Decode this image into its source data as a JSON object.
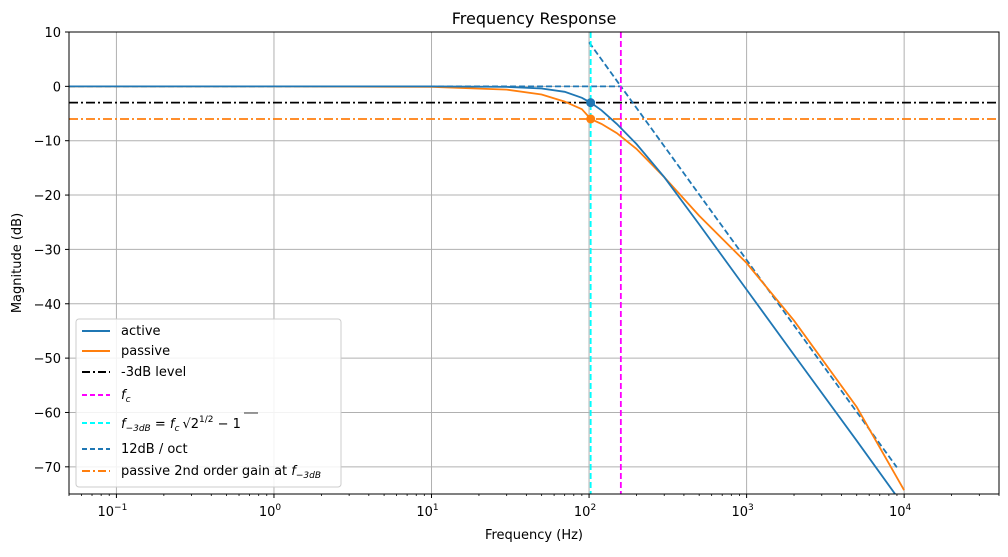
{
  "chart_data": {
    "type": "line",
    "title": "Frequency Response",
    "xlabel": "Frequency (Hz)",
    "ylabel": "Magnitude (dB)",
    "xscale": "log",
    "xlim": [
      0.05,
      40000
    ],
    "ylim": [
      -75,
      10
    ],
    "grid": true,
    "legend_position": "lower-left",
    "fc": 159.15,
    "f_3db": 102.4,
    "x_ticks": [
      {
        "value": 0.1,
        "base": "10",
        "exp": "−1"
      },
      {
        "value": 1,
        "base": "10",
        "exp": "0"
      },
      {
        "value": 10,
        "base": "10",
        "exp": "1"
      },
      {
        "value": 100,
        "base": "10",
        "exp": "2"
      },
      {
        "value": 1000,
        "base": "10",
        "exp": "3"
      },
      {
        "value": 10000,
        "base": "10",
        "exp": "4"
      }
    ],
    "y_ticks": [
      {
        "value": 10,
        "label": "10"
      },
      {
        "value": 0,
        "label": "0"
      },
      {
        "value": -10,
        "label": "−10"
      },
      {
        "value": -20,
        "label": "−20"
      },
      {
        "value": -30,
        "label": "−30"
      },
      {
        "value": -40,
        "label": "−40"
      },
      {
        "value": -50,
        "label": "−50"
      },
      {
        "value": -60,
        "label": "−60"
      },
      {
        "value": -70,
        "label": "−70"
      }
    ],
    "series": [
      {
        "name": "active",
        "color": "#1f77b4",
        "style": "solid",
        "x": [
          0.05,
          1,
          10,
          30,
          50,
          70,
          90,
          102.4,
          120,
          150,
          200,
          300,
          500,
          1000,
          2000,
          5000,
          10000
        ],
        "y": [
          0,
          0,
          0,
          -0.1,
          -0.4,
          -1.0,
          -2.1,
          -3.0,
          -4.4,
          -6.9,
          -10.6,
          -16.7,
          -25.4,
          -37.4,
          -49.4,
          -65.2,
          -77.3
        ]
      },
      {
        "name": "passive",
        "color": "#ff7f0e",
        "style": "solid",
        "x": [
          0.05,
          1,
          10,
          30,
          50,
          70,
          90,
          102.4,
          120,
          150,
          200,
          300,
          500,
          1000,
          2000,
          5000,
          10000
        ],
        "y": [
          0,
          0,
          -0.1,
          -0.6,
          -1.5,
          -2.8,
          -4.2,
          -6.0,
          -6.9,
          -8.6,
          -11.5,
          -16.7,
          -23.8,
          -32.5,
          -43.1,
          -59.0,
          -74.3
        ]
      },
      {
        "name": "-3dB level",
        "color": "#000000",
        "style": "dashdot",
        "hline": -3
      },
      {
        "name": "$f_c$",
        "color": "#ff00ff",
        "style": "dashed",
        "vline": 159.15
      },
      {
        "name": "$f_{-3dB} = f_c\\sqrt{2^{1/2}-1}$",
        "color": "#00ffff",
        "style": "dashed",
        "vline": 102.4
      },
      {
        "name": "12dB / oct",
        "color": "#1f77b4",
        "style": "dashed",
        "x": [
          0.05,
          100,
          159.15,
          9000
        ],
        "y": [
          0,
          0,
          0,
          -70.1
        ],
        "x2": [
          100,
          159.15
        ],
        "y2": [
          8.1,
          0
        ]
      },
      {
        "name": "passive 2nd order gain at $f_{-3dB}$",
        "color": "#ff7f0e",
        "style": "dashdot",
        "hline": -6
      }
    ],
    "markers": [
      {
        "x": 102.4,
        "y": -3,
        "color": "#1f77b4"
      },
      {
        "x": 102.4,
        "y": -6,
        "color": "#ff7f0e"
      }
    ]
  },
  "legend": {
    "active": "active",
    "passive": "passive",
    "minus3db": "-3dB level",
    "fc_f": "f",
    "fc_sub": "c",
    "f3_f": "f",
    "f3_sub": "−3dB",
    "f3_eq": " = ",
    "f3_f2": "f",
    "f3_sub2": "c",
    "f3_rad": "2",
    "f3_exp": "1/2",
    "f3_minus": " − 1",
    "slope": "12dB / oct",
    "passive2": "passive 2nd order gain at ",
    "passive2_f": "f",
    "passive2_sub": "−3dB"
  }
}
